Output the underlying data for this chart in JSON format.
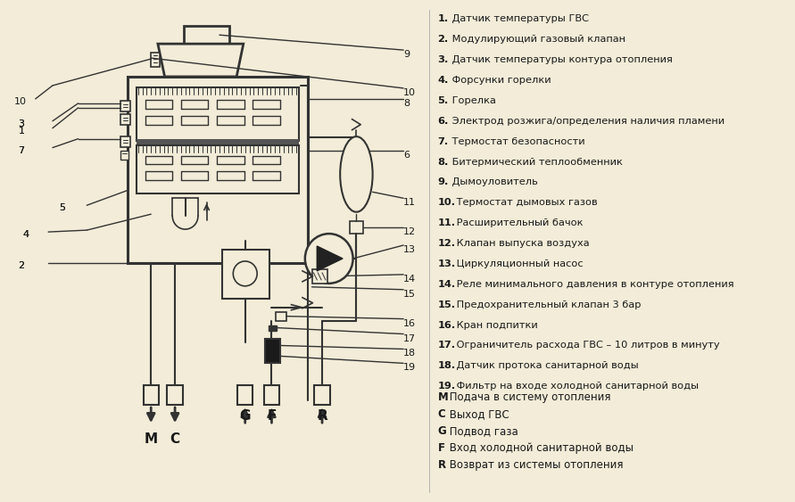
{
  "bg_color": "#f2ecd8",
  "text_color": "#1a1a1a",
  "line_color": "#333333",
  "legend_items": [
    "1. Датчик температуры ГВС",
    "2. Модулирующий газовый клапан",
    "3. Датчик температуры контура отопления",
    "4. Форсунки горелки",
    "5. Горелка",
    "6. Электрод розжига/определения наличия пламени",
    "7. Термостат безопасности",
    "8. Битермический теплообменник",
    "9. Дымоуловитель",
    "10. Термостат дымовых газов",
    "11. Расширительный бачок",
    "12. Клапан выпуска воздуха",
    "13. Циркуляционный насос",
    "14. Реле минимального давления в контуре отопления",
    "15. Предохранительный клапан 3 бар",
    "16. Кран подпитки",
    "17. Ограничитель расхода ГВС – 10 литров в минуту",
    "18. Датчик протока санитарной воды",
    "19. Фильтр на входе холодной санитарной воды"
  ],
  "connection_desc": [
    [
      "M",
      " Подача в систему отопления"
    ],
    [
      "C",
      " Выход ГВС"
    ],
    [
      "G",
      " Подвод газа"
    ],
    [
      "F",
      " Вход холодной санитарной воды"
    ],
    [
      "R",
      " Возврат из системы отопления"
    ]
  ]
}
